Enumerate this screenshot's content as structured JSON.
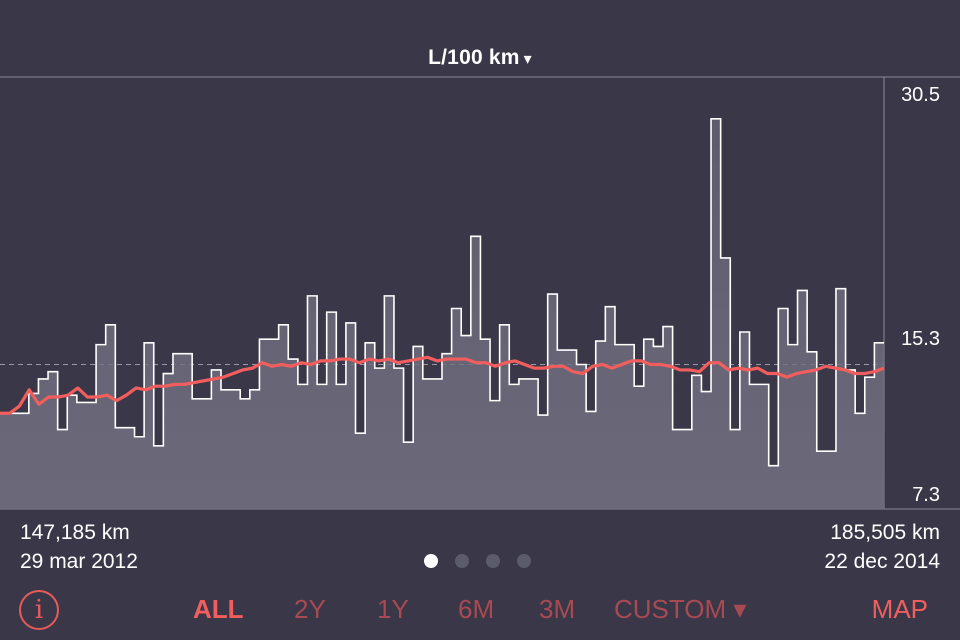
{
  "header": {
    "title": "L/100 km",
    "caret": "▾"
  },
  "y_axis": {
    "max_label": "30.5",
    "mid_label": "15.3",
    "min_label": "7.3"
  },
  "footer": {
    "left": {
      "odometer": "147,185 km",
      "date": "29 mar 2012"
    },
    "right": {
      "odometer": "185,505 km",
      "date": "22 dec 2014"
    }
  },
  "pager": {
    "pages": 4,
    "active": 0
  },
  "toolbar": {
    "info_label": "i",
    "ranges": [
      {
        "label": "ALL",
        "active": true
      },
      {
        "label": "2Y",
        "active": false
      },
      {
        "label": "1Y",
        "active": false
      },
      {
        "label": "6M",
        "active": false
      },
      {
        "label": "3M",
        "active": false
      },
      {
        "label": "CUSTOM ▾",
        "active": false
      }
    ],
    "map_label": "MAP"
  },
  "colors": {
    "background": "#3a3848",
    "accent": "#f25e5e",
    "accent_dim": "#a84a52",
    "step_line": "#ffffff"
  },
  "chart_data": {
    "type": "line",
    "ylim": [
      7.3,
      30.5
    ],
    "reference_line": 15.3,
    "x_range": [
      "147,185 km",
      "185,505 km"
    ],
    "series": [
      {
        "values": [
          12.6,
          12.6,
          12.6,
          13.7,
          14.5,
          14.9,
          11.7,
          13.6,
          13.2,
          13.2,
          16.4,
          17.5,
          11.8,
          11.8,
          11.3,
          16.5,
          10.8,
          14.8,
          15.9,
          15.9,
          13.4,
          13.4,
          15.0,
          13.9,
          13.9,
          13.4,
          13.9,
          16.7,
          16.7,
          17.5,
          15.6,
          14.2,
          19.1,
          14.2,
          18.2,
          14.2,
          17.6,
          11.5,
          16.5,
          15.1,
          19.1,
          15.1,
          11.0,
          16.3,
          14.5,
          14.5,
          15.9,
          18.4,
          16.9,
          22.4,
          16.7,
          13.3,
          17.5,
          14.2,
          14.5,
          14.5,
          12.5,
          19.2,
          16.1,
          16.1,
          15.3,
          12.7,
          16.6,
          18.5,
          16.4,
          16.4,
          14.1,
          16.7,
          16.3,
          17.4,
          11.7,
          11.7,
          14.7,
          13.8,
          28.9,
          21.2,
          11.7,
          17.1,
          14.2,
          14.2,
          9.7,
          18.4,
          16.4,
          19.4,
          16.0,
          10.5,
          10.5,
          19.5,
          15.0,
          12.6,
          14.6,
          16.5
        ]
      },
      {
        "values": [
          12.6,
          12.6,
          13.0,
          13.9,
          13.1,
          13.5,
          13.5,
          13.6,
          14.0,
          13.5,
          13.5,
          13.6,
          13.3,
          13.6,
          14.0,
          13.9,
          14.1,
          14.1,
          14.2,
          14.2,
          14.3,
          14.4,
          14.5,
          14.6,
          14.8,
          15.0,
          15.1,
          15.4,
          15.2,
          15.3,
          15.2,
          15.4,
          15.3,
          15.5,
          15.5,
          15.6,
          15.6,
          15.4,
          15.6,
          15.5,
          15.6,
          15.4,
          15.5,
          15.6,
          15.7,
          15.5,
          15.6,
          15.6,
          15.6,
          15.4,
          15.4,
          15.2,
          15.4,
          15.5,
          15.3,
          15.1,
          15.1,
          15.2,
          15.2,
          14.9,
          14.8,
          15.2,
          15.3,
          15.1,
          15.3,
          15.5,
          15.5,
          15.3,
          15.3,
          15.2,
          15.0,
          15.0,
          14.9,
          15.4,
          15.4,
          15.0,
          15.1,
          15.0,
          15.1,
          14.8,
          14.8,
          14.6,
          14.8,
          14.9,
          15.0,
          15.2,
          15.1,
          15.0,
          14.8,
          14.8,
          14.9,
          15.1
        ]
      }
    ]
  }
}
